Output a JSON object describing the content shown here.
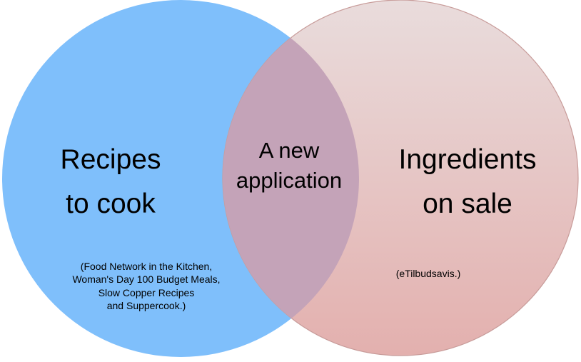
{
  "colors": {
    "left_circle": "#7fbffb",
    "right_circle_top": "#e9dcdc",
    "right_circle_bottom": "#e3b0ae",
    "right_circle_border": "#c89c9a",
    "intersection": "#c4a3b8"
  },
  "venn": {
    "left": {
      "title": "Recipes\nto cook",
      "note": "(Food Network in the Kitchen,\nWoman's Day 100 Budget Meals,\nSlow Copper Recipes\nand Suppercook.)"
    },
    "right": {
      "title": "Ingredients\non sale",
      "note": "(eTilbudsavis.)"
    },
    "center": {
      "title": "A new\napplication"
    }
  }
}
